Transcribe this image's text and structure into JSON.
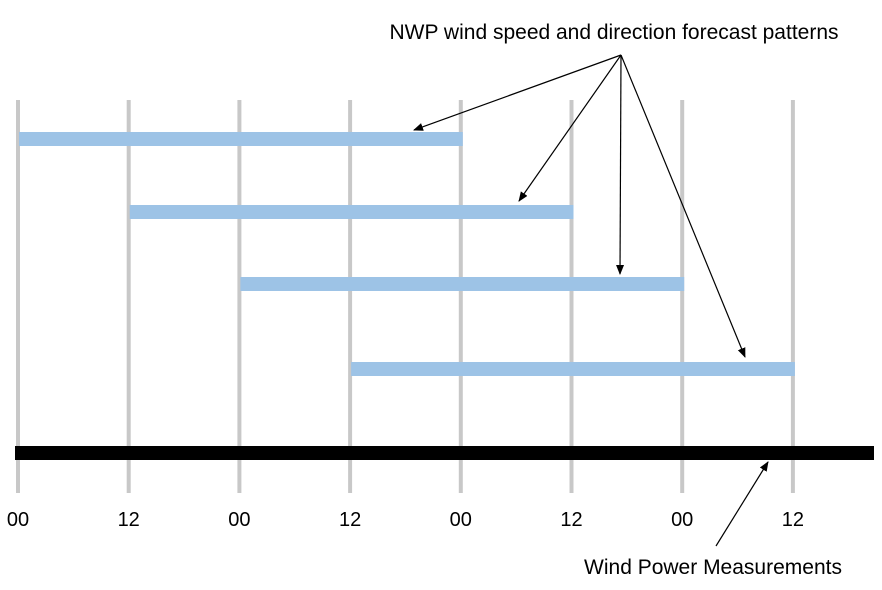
{
  "title": "NWP wind speed and direction forecast patterns",
  "caption": "Wind Power Measurements",
  "time_ticks": [
    "00",
    "12",
    "00",
    "12",
    "00",
    "12",
    "00",
    "12"
  ],
  "colors": {
    "gridline": "#c8c8c8",
    "forecast_bar": "#9dc3e6",
    "measurement_bar": "#000000",
    "arrow": "#000000"
  },
  "forecast_windows": [
    {
      "start_tick": 0,
      "end_tick": 4
    },
    {
      "start_tick": 1,
      "end_tick": 5
    },
    {
      "start_tick": 2,
      "end_tick": 6
    },
    {
      "start_tick": 3,
      "end_tick": 7
    }
  ],
  "measurement_window": {
    "start_tick": 0,
    "end_tick": 7.8
  }
}
